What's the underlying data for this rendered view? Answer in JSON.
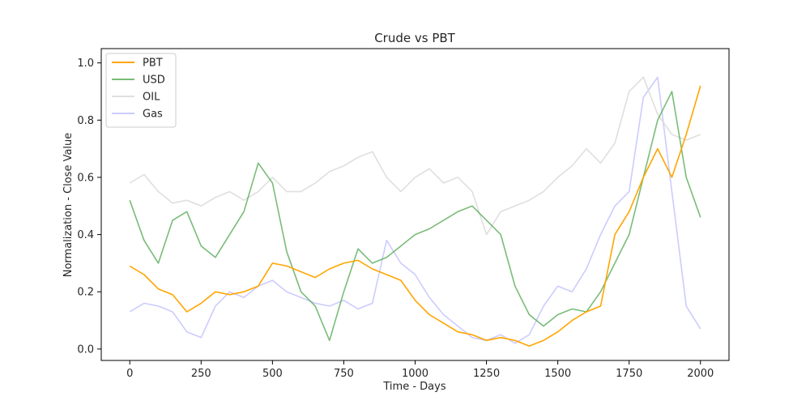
{
  "chart_data": {
    "type": "line",
    "title": "Crude vs PBT",
    "xlabel": "Time - Days",
    "ylabel": "Normalization - Close Value",
    "xlim": [
      -100,
      2100
    ],
    "ylim": [
      -0.04,
      1.05
    ],
    "x_ticks": [
      0,
      250,
      500,
      750,
      1000,
      1250,
      1500,
      1750,
      2000
    ],
    "y_ticks": [
      0.0,
      0.2,
      0.4,
      0.6,
      0.8,
      1.0
    ],
    "x_tick_labels": [
      "0",
      "250",
      "500",
      "750",
      "1000",
      "1250",
      "1500",
      "1750",
      "2000"
    ],
    "y_tick_labels": [
      "0.0",
      "0.2",
      "0.4",
      "0.6",
      "0.8",
      "1.0"
    ],
    "grid": false,
    "legend_position": "top-left",
    "x": [
      0,
      50,
      100,
      150,
      200,
      250,
      300,
      350,
      400,
      450,
      500,
      550,
      600,
      650,
      700,
      750,
      800,
      850,
      900,
      950,
      1000,
      1050,
      1100,
      1150,
      1200,
      1250,
      1300,
      1350,
      1400,
      1450,
      1500,
      1550,
      1600,
      1650,
      1700,
      1750,
      1800,
      1850,
      1900,
      1950,
      2000
    ],
    "series": [
      {
        "name": "PBT",
        "color": "#ffa500",
        "opacity": 1.0,
        "values": [
          0.29,
          0.26,
          0.21,
          0.19,
          0.13,
          0.16,
          0.2,
          0.19,
          0.2,
          0.22,
          0.3,
          0.29,
          0.27,
          0.25,
          0.28,
          0.3,
          0.31,
          0.28,
          0.26,
          0.24,
          0.17,
          0.12,
          0.09,
          0.06,
          0.05,
          0.03,
          0.04,
          0.03,
          0.01,
          0.03,
          0.06,
          0.1,
          0.13,
          0.15,
          0.4,
          0.48,
          0.6,
          0.7,
          0.6,
          0.75,
          0.92
        ]
      },
      {
        "name": "USD",
        "color": "#4ca64c",
        "opacity": 0.75,
        "values": [
          0.52,
          0.38,
          0.3,
          0.45,
          0.48,
          0.36,
          0.32,
          0.4,
          0.48,
          0.65,
          0.58,
          0.34,
          0.2,
          0.15,
          0.03,
          0.2,
          0.35,
          0.3,
          0.32,
          0.36,
          0.4,
          0.42,
          0.45,
          0.48,
          0.5,
          0.45,
          0.4,
          0.22,
          0.12,
          0.08,
          0.12,
          0.14,
          0.13,
          0.2,
          0.3,
          0.4,
          0.6,
          0.8,
          0.9,
          0.6,
          0.46
        ]
      },
      {
        "name": "OIL",
        "color": "#d9d9d9",
        "opacity": 0.85,
        "values": [
          0.58,
          0.61,
          0.55,
          0.51,
          0.52,
          0.5,
          0.53,
          0.55,
          0.52,
          0.55,
          0.6,
          0.55,
          0.55,
          0.58,
          0.62,
          0.64,
          0.67,
          0.69,
          0.6,
          0.55,
          0.6,
          0.63,
          0.58,
          0.6,
          0.55,
          0.4,
          0.48,
          0.5,
          0.52,
          0.55,
          0.6,
          0.64,
          0.7,
          0.65,
          0.72,
          0.9,
          0.95,
          0.82,
          0.75,
          0.73,
          0.75
        ]
      },
      {
        "name": "Gas",
        "color": "#aaaaff",
        "opacity": 0.6,
        "values": [
          0.13,
          0.16,
          0.15,
          0.13,
          0.06,
          0.04,
          0.15,
          0.2,
          0.18,
          0.22,
          0.24,
          0.2,
          0.18,
          0.16,
          0.15,
          0.17,
          0.14,
          0.16,
          0.38,
          0.3,
          0.26,
          0.18,
          0.12,
          0.08,
          0.04,
          0.03,
          0.05,
          0.02,
          0.05,
          0.15,
          0.22,
          0.2,
          0.28,
          0.4,
          0.5,
          0.55,
          0.88,
          0.95,
          0.55,
          0.15,
          0.07
        ]
      }
    ]
  }
}
